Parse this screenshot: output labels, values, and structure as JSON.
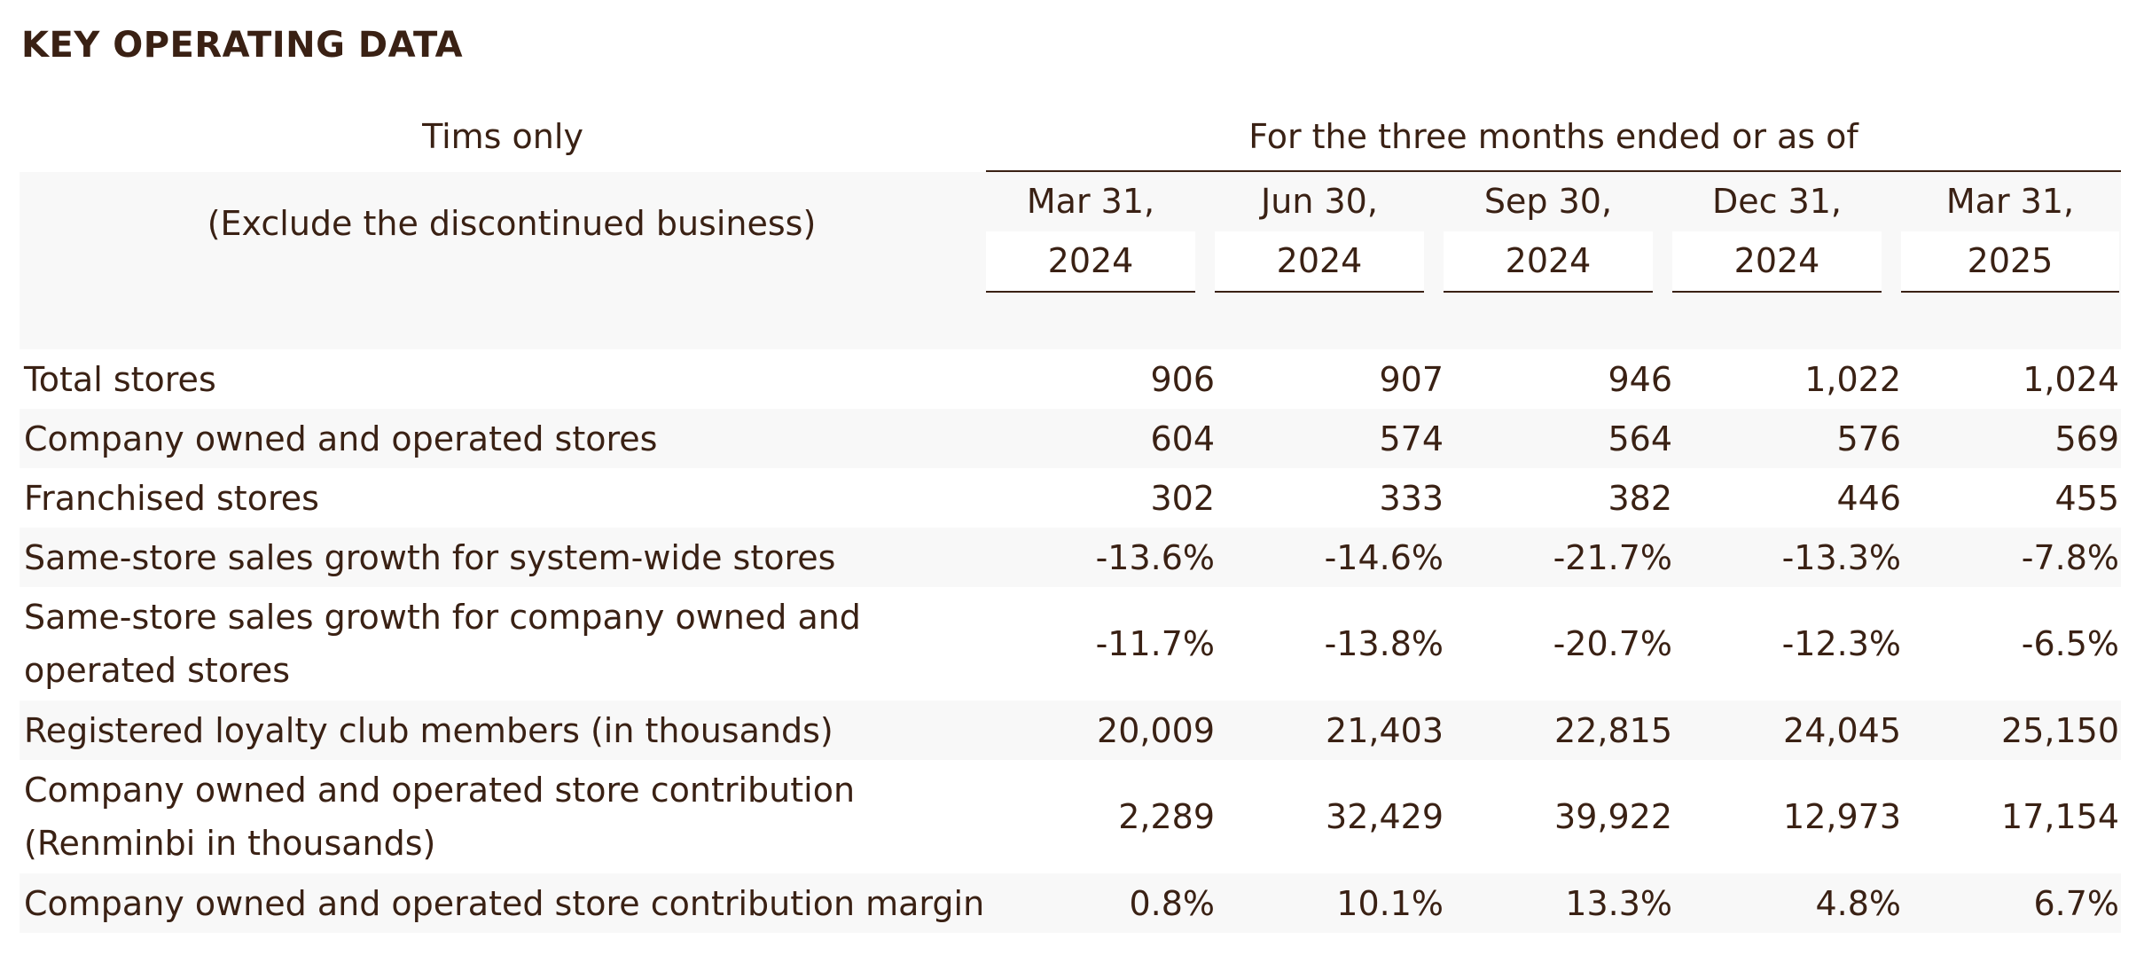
{
  "title": "KEY OPERATING DATA",
  "header": {
    "tims_only": "Tims only",
    "exclude_note": "(Exclude the discontinued business)",
    "period_label": "For the three months ended or as of",
    "columns": [
      {
        "line1": "Mar 31,",
        "line2": "2024"
      },
      {
        "line1": "Jun 30,",
        "line2": "2024"
      },
      {
        "line1": "Sep 30,",
        "line2": "2024"
      },
      {
        "line1": "Dec 31,",
        "line2": "2024"
      },
      {
        "line1": "Mar 31,",
        "line2": "2025"
      }
    ]
  },
  "rows": [
    {
      "label": "Total stores",
      "values": [
        "906",
        "907",
        "946",
        "1,022",
        "1,024"
      ]
    },
    {
      "label": "Company owned and operated stores",
      "values": [
        "604",
        "574",
        "564",
        "576",
        "569"
      ]
    },
    {
      "label": "Franchised stores",
      "values": [
        "302",
        "333",
        "382",
        "446",
        "455"
      ]
    },
    {
      "label": "Same-store sales growth for system-wide stores",
      "values": [
        "-13.6%",
        "-14.6%",
        "-21.7%",
        "-13.3%",
        "-7.8%"
      ]
    },
    {
      "label": "Same-store sales growth for company owned and operated stores",
      "values": [
        "-11.7%",
        "-13.8%",
        "-20.7%",
        "-12.3%",
        "-6.5%"
      ]
    },
    {
      "label": "Registered loyalty club members (in thousands)",
      "values": [
        "20,009",
        "21,403",
        "22,815",
        "24,045",
        "25,150"
      ]
    },
    {
      "label": "Company owned and operated store contribution (Renminbi in thousands)",
      "values": [
        "2,289",
        "32,429",
        "39,922",
        "12,973",
        "17,154"
      ]
    },
    {
      "label": "Company owned and operated store contribution margin",
      "values": [
        "0.8%",
        "10.1%",
        "13.3%",
        "4.8%",
        "6.7%"
      ]
    }
  ]
}
